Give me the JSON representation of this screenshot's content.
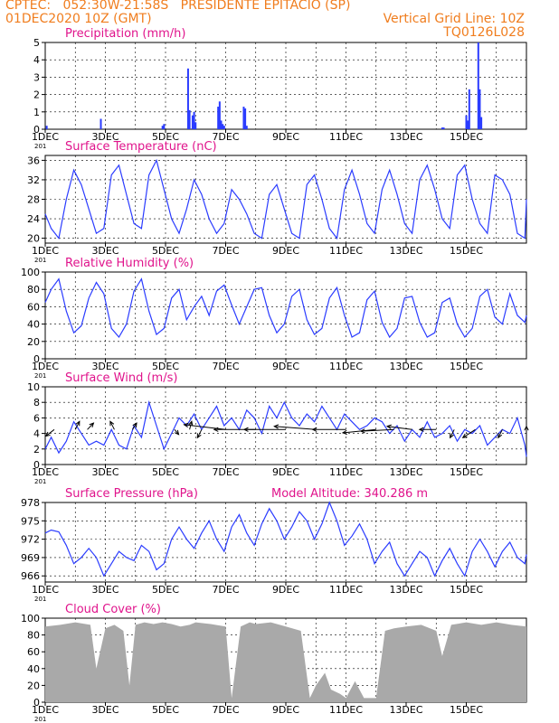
{
  "header": {
    "line1_left": "CPTEC:   052:30W-21:58S   PRESIDENTE EPITACIO (SP)",
    "line2_left": "01DEC2020 10Z (GMT)",
    "line2_right": "Vertical Grid Line: 10Z",
    "line3_right": "TQ0126L028"
  },
  "colors": {
    "header": "#f07d1e",
    "title": "#e0148c",
    "line": "#2b3cff",
    "cloud": "#a9a9a9",
    "axis": "#000000"
  },
  "x_ticks": [
    "1DEC",
    "3DEC",
    "5DEC",
    "7DEC",
    "9DEC",
    "11DEC",
    "13DEC",
    "15DEC"
  ],
  "x_start_label": "201",
  "extra_label": "Model Altitude: 340.286 m",
  "chart_data": [
    {
      "id": "precip",
      "type": "bar",
      "title": "Precipitation (mm/h)",
      "ylim": [
        0,
        5
      ],
      "yticks": [
        0,
        1,
        2,
        3,
        4,
        5
      ],
      "x_unit": "day offset from 01DEC2020 10Z",
      "x": [
        0.05,
        1.85,
        3.9,
        3.95,
        4.75,
        4.8,
        4.9,
        4.95,
        5.0,
        5.75,
        5.8,
        5.85,
        5.9,
        5.95,
        6.6,
        6.65,
        6.7,
        13.2,
        13.25,
        14.0,
        14.05,
        14.1,
        14.4,
        14.45,
        14.5
      ],
      "values": [
        0.2,
        0.6,
        0.2,
        0.3,
        3.5,
        1.1,
        0.8,
        1.0,
        0.4,
        1.3,
        1.6,
        0.5,
        0.3,
        0.2,
        1.3,
        1.2,
        0.2,
        0.1,
        0.1,
        0.8,
        0.5,
        2.3,
        5.0,
        2.3,
        0.7
      ]
    },
    {
      "id": "temp",
      "type": "line",
      "title": "Surface Temperature (nC)",
      "ylim": [
        19,
        37
      ],
      "yticks": [
        20,
        24,
        28,
        32,
        36
      ],
      "x": [
        0,
        0.2,
        0.45,
        0.7,
        0.95,
        1.2,
        1.45,
        1.7,
        1.95,
        2.2,
        2.45,
        2.7,
        2.95,
        3.2,
        3.45,
        3.7,
        3.95,
        4.2,
        4.45,
        4.7,
        4.95,
        5.2,
        5.45,
        5.7,
        5.95,
        6.2,
        6.45,
        6.7,
        6.95,
        7.2,
        7.45,
        7.7,
        7.95,
        8.2,
        8.45,
        8.7,
        8.95,
        9.2,
        9.45,
        9.7,
        9.95,
        10.2,
        10.45,
        10.7,
        10.95,
        11.2,
        11.45,
        11.7,
        11.95,
        12.2,
        12.45,
        12.7,
        12.95,
        13.2,
        13.45,
        13.7,
        13.95,
        14.2,
        14.45,
        14.7,
        14.95,
        15.2,
        15.45,
        15.7,
        15.95,
        16.0
      ],
      "values": [
        25,
        22,
        20,
        28,
        34,
        31,
        26,
        21,
        22,
        33,
        35,
        29,
        23,
        22,
        33,
        36,
        30,
        24,
        21,
        26,
        32,
        29,
        24,
        21,
        23,
        30,
        28,
        25,
        21,
        20,
        29,
        31,
        26,
        21,
        20,
        31,
        33,
        28,
        22,
        20,
        30,
        34,
        29,
        23,
        21,
        30,
        34,
        29,
        23,
        21,
        32,
        35,
        30,
        24,
        22,
        33,
        35,
        28,
        23,
        21,
        33,
        32,
        29,
        21,
        20,
        28
      ]
    },
    {
      "id": "rh",
      "type": "line",
      "title": "Relative Humidity (%)",
      "ylim": [
        0,
        100
      ],
      "yticks": [
        0,
        20,
        40,
        60,
        80,
        100
      ],
      "x": [
        0,
        0.2,
        0.45,
        0.7,
        0.95,
        1.2,
        1.45,
        1.7,
        1.95,
        2.2,
        2.45,
        2.7,
        2.95,
        3.2,
        3.45,
        3.7,
        3.95,
        4.2,
        4.45,
        4.7,
        4.95,
        5.2,
        5.45,
        5.7,
        5.95,
        6.2,
        6.45,
        6.7,
        6.95,
        7.2,
        7.45,
        7.7,
        7.95,
        8.2,
        8.45,
        8.7,
        8.95,
        9.2,
        9.45,
        9.7,
        9.95,
        10.2,
        10.45,
        10.7,
        10.95,
        11.2,
        11.45,
        11.7,
        11.95,
        12.2,
        12.45,
        12.7,
        12.95,
        13.2,
        13.45,
        13.7,
        13.95,
        14.2,
        14.45,
        14.7,
        14.95,
        15.2,
        15.45,
        15.7,
        15.95,
        16.0
      ],
      "values": [
        65,
        80,
        92,
        55,
        30,
        38,
        70,
        88,
        75,
        35,
        25,
        40,
        78,
        92,
        55,
        28,
        35,
        70,
        80,
        45,
        60,
        72,
        50,
        78,
        85,
        62,
        40,
        60,
        80,
        82,
        50,
        30,
        40,
        72,
        80,
        45,
        28,
        35,
        70,
        82,
        50,
        25,
        30,
        68,
        78,
        42,
        25,
        35,
        70,
        72,
        42,
        25,
        30,
        65,
        70,
        40,
        25,
        35,
        72,
        80,
        48,
        40,
        75,
        50,
        42,
        50
      ]
    },
    {
      "id": "wind",
      "type": "line",
      "title": "Surface Wind (m/s)",
      "ylim": [
        0,
        10
      ],
      "yticks": [
        0,
        2,
        4,
        6,
        8,
        10
      ],
      "x": [
        0,
        0.2,
        0.45,
        0.7,
        0.95,
        1.2,
        1.45,
        1.7,
        1.95,
        2.2,
        2.45,
        2.7,
        2.95,
        3.2,
        3.45,
        3.7,
        3.95,
        4.2,
        4.45,
        4.7,
        4.95,
        5.2,
        5.45,
        5.7,
        5.95,
        6.2,
        6.45,
        6.7,
        6.95,
        7.2,
        7.45,
        7.7,
        7.95,
        8.2,
        8.45,
        8.7,
        8.95,
        9.2,
        9.45,
        9.7,
        9.95,
        10.2,
        10.45,
        10.7,
        10.95,
        11.2,
        11.45,
        11.7,
        11.95,
        12.2,
        12.45,
        12.7,
        12.95,
        13.2,
        13.45,
        13.7,
        13.95,
        14.2,
        14.45,
        14.7,
        14.95,
        15.2,
        15.45,
        15.7,
        15.95,
        16.0
      ],
      "values": [
        2,
        3.5,
        1.5,
        3,
        5.5,
        4,
        2.5,
        3,
        2.5,
        4.5,
        2.5,
        2,
        5,
        3.5,
        8,
        5,
        2,
        4,
        6,
        5,
        6.5,
        4.5,
        6,
        7.5,
        5,
        6,
        4.5,
        7,
        6,
        4,
        7.5,
        6,
        8,
        6,
        5,
        6.5,
        5.5,
        7.5,
        6,
        4.5,
        6.5,
        5.5,
        4.5,
        5,
        6,
        5.5,
        4,
        5,
        3,
        4.5,
        3.5,
        5.5,
        3.5,
        4,
        5,
        3,
        4.5,
        4,
        5,
        2.5,
        3.5,
        4.5,
        4,
        6,
        2.5,
        1
      ],
      "arrows": {
        "x": [
          0.3,
          1.0,
          1.4,
          2.3,
          2.9,
          4.3,
          4.8,
          5.2,
          6.0,
          7.0,
          8.0,
          9.0,
          10.0,
          11.0,
          11.6,
          12.2,
          13.0,
          13.6,
          14.3,
          15.2,
          16.0
        ],
        "u": [
          -2,
          1,
          1.5,
          -1,
          1,
          1,
          0.5,
          -1,
          -10,
          -10,
          -10,
          -10,
          -8,
          -8,
          -8,
          -6,
          -4,
          -1,
          -3,
          -1,
          0
        ],
        "v": [
          -2,
          2.5,
          2,
          2.5,
          2,
          -1.5,
          2.5,
          -2.5,
          1.5,
          0,
          0,
          1,
          0,
          -1,
          -0.5,
          1,
          0,
          -2.5,
          -2.5,
          -2.5,
          1
        ]
      }
    },
    {
      "id": "pres",
      "type": "line",
      "title": "Surface Pressure (hPa)",
      "ylim": [
        965,
        978
      ],
      "yticks": [
        966,
        969,
        972,
        975,
        978
      ],
      "x": [
        0,
        0.2,
        0.45,
        0.7,
        0.95,
        1.2,
        1.45,
        1.7,
        1.95,
        2.2,
        2.45,
        2.7,
        2.95,
        3.2,
        3.45,
        3.7,
        3.95,
        4.2,
        4.45,
        4.7,
        4.95,
        5.2,
        5.45,
        5.7,
        5.95,
        6.2,
        6.45,
        6.7,
        6.95,
        7.2,
        7.45,
        7.7,
        7.95,
        8.2,
        8.45,
        8.7,
        8.95,
        9.2,
        9.45,
        9.7,
        9.95,
        10.2,
        10.45,
        10.7,
        10.95,
        11.2,
        11.45,
        11.7,
        11.95,
        12.2,
        12.45,
        12.7,
        12.95,
        13.2,
        13.45,
        13.7,
        13.95,
        14.2,
        14.45,
        14.7,
        14.95,
        15.2,
        15.45,
        15.7,
        15.95,
        16.0
      ],
      "values": [
        973,
        973.5,
        973.2,
        971,
        968,
        969,
        970.5,
        969,
        966,
        968,
        970,
        969,
        968.5,
        971,
        970,
        967,
        968,
        972,
        974,
        972,
        970.5,
        973,
        975,
        972,
        970,
        974,
        976,
        973,
        971,
        974.5,
        977,
        975,
        972,
        974,
        976.5,
        975,
        972,
        974.5,
        978,
        975,
        971,
        972.5,
        974.5,
        972,
        968,
        970,
        971.5,
        968,
        966,
        968,
        970,
        969,
        966,
        968.5,
        970.5,
        968,
        966,
        970,
        972,
        970,
        967.5,
        970,
        971.5,
        969,
        968,
        969.5
      ]
    },
    {
      "id": "cloud",
      "type": "area",
      "title": "Cloud Cover (%)",
      "ylim": [
        0,
        100
      ],
      "yticks": [
        0,
        20,
        40,
        60,
        80,
        100
      ],
      "x": [
        0,
        0.5,
        1.0,
        1.5,
        1.7,
        2.0,
        2.3,
        2.6,
        2.8,
        3.0,
        3.3,
        3.6,
        3.9,
        4.2,
        4.5,
        4.8,
        5.0,
        5.5,
        6.0,
        6.2,
        6.5,
        6.8,
        7.0,
        7.5,
        8.0,
        8.5,
        8.8,
        9.0,
        9.3,
        9.5,
        9.8,
        10.0,
        10.3,
        10.6,
        11.0,
        11.3,
        11.6,
        12.0,
        12.5,
        13.0,
        13.2,
        13.5,
        14.0,
        14.5,
        15.0,
        15.5,
        16.0
      ],
      "values": [
        90,
        92,
        95,
        92,
        40,
        88,
        92,
        85,
        20,
        92,
        95,
        93,
        95,
        93,
        90,
        92,
        95,
        93,
        90,
        5,
        90,
        95,
        93,
        95,
        90,
        85,
        5,
        20,
        35,
        15,
        10,
        5,
        25,
        5,
        5,
        85,
        88,
        90,
        92,
        85,
        55,
        92,
        95,
        92,
        95,
        92,
        90
      ]
    }
  ]
}
